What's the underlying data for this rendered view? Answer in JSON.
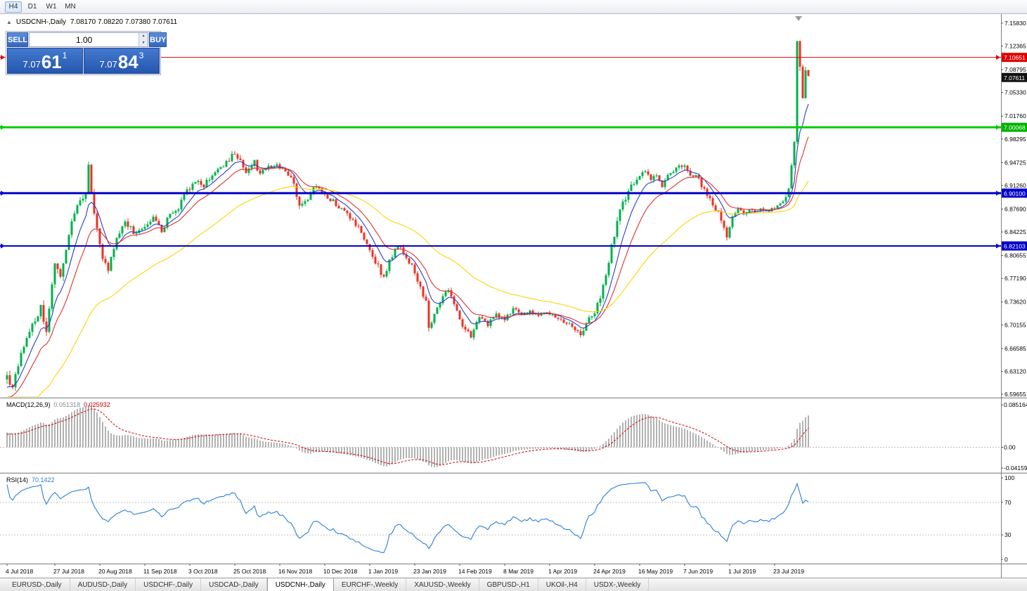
{
  "toolbar": {
    "timeframes": [
      {
        "label": "H4",
        "active": true
      },
      {
        "label": "D1",
        "active": false
      },
      {
        "label": "W1",
        "active": false
      },
      {
        "label": "MN",
        "active": false
      }
    ]
  },
  "header": {
    "symbol": "USDCNH-,Daily",
    "ohlc": "7.08170 7.08220 7.07380 7.07611"
  },
  "trade_panel": {
    "sell_label": "SELL",
    "buy_label": "BUY",
    "lot": "1.00",
    "bid": {
      "prefix": "7.07",
      "big": "61",
      "sup": "1"
    },
    "ask": {
      "prefix": "7.07",
      "big": "84",
      "sup": "3"
    }
  },
  "indicators": {
    "macd": {
      "name": "MACD(12,26,9)",
      "value": "0.051318",
      "signal": "0.025932"
    },
    "rsi": {
      "name": "RSI(14)",
      "value": "70.1422"
    }
  },
  "tabs": [
    {
      "label": "EURUSD-,Daily",
      "active": false
    },
    {
      "label": "AUDUSD-,Daily",
      "active": false
    },
    {
      "label": "USDCHF-,Daily",
      "active": false
    },
    {
      "label": "USDCAD-,Daily",
      "active": false
    },
    {
      "label": "USDCNH-,Daily",
      "active": true
    },
    {
      "label": "EURCHF-,Weekly",
      "active": false
    },
    {
      "label": "XAUUSD-,Weekly",
      "active": false
    },
    {
      "label": "GBPUSD-,H1",
      "active": false
    },
    {
      "label": "UKOil-,H4",
      "active": false
    },
    {
      "label": "USDX-,Weekly",
      "active": false
    }
  ],
  "chart_data": {
    "type": "candlestick",
    "symbol": "USDCNH",
    "timeframe": "Daily",
    "ohlc_display": {
      "open": "7.08170",
      "high": "7.08220",
      "low": "7.07380",
      "close": "7.07611"
    },
    "price_range": {
      "top": 7.17213,
      "bottom": 6.5923
    },
    "price_ticks": [
      "7.15830",
      "7.12365",
      "7.08795",
      "7.05330",
      "7.01760",
      "6.98295",
      "6.94725",
      "6.91260",
      "6.87690",
      "6.84225",
      "6.80655",
      "6.77190",
      "6.73620",
      "6.70155",
      "6.66585",
      "6.63120",
      "6.59655"
    ],
    "current_price": {
      "value": 7.07611,
      "label": "7.07611",
      "bg": "#111111"
    },
    "hlines": [
      {
        "value": 7.10651,
        "label": "7.10651",
        "color": "#e00000",
        "label_bg": "#dd0000",
        "width": 1
      },
      {
        "value": 7.00068,
        "label": "7.00068",
        "color": "#00cc00",
        "label_bg": "#00b300",
        "width": 3
      },
      {
        "value": 6.901,
        "label": "6.90100",
        "color": "#0000c8",
        "label_bg": "#0000c8",
        "width": 3
      },
      {
        "value": 6.82103,
        "label": "6.82103",
        "color": "#0000c8",
        "label_bg": "#0000c8",
        "width": 2
      }
    ],
    "colors": {
      "up": "#00b14c",
      "down": "#ea3224",
      "ma": [
        {
          "period": 8,
          "color": "#2b3fc4"
        },
        {
          "period": 16,
          "color": "#e03030"
        },
        {
          "period": 50,
          "color": "#ffd300"
        }
      ]
    },
    "candles": {
      "seed": 123456789,
      "anchors": [
        [
          -30,
          6.5,
          0.012
        ],
        [
          -20,
          6.548,
          0.012
        ],
        [
          -10,
          6.568,
          0.012
        ],
        [
          0,
          6.63,
          0.014
        ],
        [
          2,
          6.602,
          0.015
        ],
        [
          5,
          6.66,
          0.014
        ],
        [
          9,
          6.705,
          0.013
        ],
        [
          12,
          6.726,
          0.013
        ],
        [
          14,
          6.695,
          0.013
        ],
        [
          17,
          6.79,
          0.013
        ],
        [
          19,
          6.778,
          0.012
        ],
        [
          23,
          6.853,
          0.012
        ],
        [
          25,
          6.885,
          0.011
        ],
        [
          28,
          6.898,
          0.012
        ],
        [
          29,
          6.943,
          0.013
        ],
        [
          31,
          6.87,
          0.012
        ],
        [
          34,
          6.806,
          0.011
        ],
        [
          36,
          6.788,
          0.011
        ],
        [
          39,
          6.835,
          0.01
        ],
        [
          42,
          6.858,
          0.01
        ],
        [
          45,
          6.842,
          0.01
        ],
        [
          49,
          6.848,
          0.009
        ],
        [
          52,
          6.862,
          0.009
        ],
        [
          55,
          6.845,
          0.009
        ],
        [
          58,
          6.868,
          0.009
        ],
        [
          61,
          6.878,
          0.009
        ],
        [
          64,
          6.905,
          0.009
        ],
        [
          67,
          6.92,
          0.009
        ],
        [
          70,
          6.912,
          0.009
        ],
        [
          73,
          6.93,
          0.009
        ],
        [
          76,
          6.938,
          0.009
        ],
        [
          79,
          6.952,
          0.01
        ],
        [
          81,
          6.962,
          0.01
        ],
        [
          83,
          6.95,
          0.01
        ],
        [
          85,
          6.935,
          0.009
        ],
        [
          88,
          6.948,
          0.009
        ],
        [
          90,
          6.93,
          0.009
        ],
        [
          93,
          6.94,
          0.008
        ],
        [
          96,
          6.942,
          0.008
        ],
        [
          99,
          6.933,
          0.008
        ],
        [
          102,
          6.916,
          0.008
        ],
        [
          104,
          6.88,
          0.01
        ],
        [
          107,
          6.893,
          0.009
        ],
        [
          110,
          6.914,
          0.008
        ],
        [
          113,
          6.898,
          0.008
        ],
        [
          116,
          6.888,
          0.008
        ],
        [
          119,
          6.877,
          0.008
        ],
        [
          122,
          6.862,
          0.008
        ],
        [
          125,
          6.848,
          0.008
        ],
        [
          128,
          6.827,
          0.008
        ],
        [
          131,
          6.798,
          0.009
        ],
        [
          134,
          6.772,
          0.009
        ],
        [
          136,
          6.798,
          0.008
        ],
        [
          139,
          6.822,
          0.008
        ],
        [
          141,
          6.812,
          0.008
        ],
        [
          144,
          6.79,
          0.008
        ],
        [
          147,
          6.76,
          0.009
        ],
        [
          149,
          6.737,
          0.011
        ],
        [
          150,
          6.695,
          0.012
        ],
        [
          152,
          6.722,
          0.009
        ],
        [
          155,
          6.742,
          0.008
        ],
        [
          157,
          6.757,
          0.008
        ],
        [
          160,
          6.72,
          0.009
        ],
        [
          163,
          6.694,
          0.009
        ],
        [
          165,
          6.684,
          0.008
        ],
        [
          168,
          6.712,
          0.008
        ],
        [
          171,
          6.702,
          0.007
        ],
        [
          174,
          6.718,
          0.007
        ],
        [
          177,
          6.71,
          0.007
        ],
        [
          180,
          6.725,
          0.007
        ],
        [
          183,
          6.716,
          0.006
        ],
        [
          186,
          6.722,
          0.006
        ],
        [
          189,
          6.716,
          0.006
        ],
        [
          192,
          6.722,
          0.006
        ],
        [
          195,
          6.712,
          0.006
        ],
        [
          198,
          6.707,
          0.006
        ],
        [
          201,
          6.699,
          0.006
        ],
        [
          204,
          6.688,
          0.007
        ],
        [
          207,
          6.71,
          0.007
        ],
        [
          209,
          6.722,
          0.008
        ],
        [
          211,
          6.74,
          0.01
        ],
        [
          213,
          6.78,
          0.012
        ],
        [
          215,
          6.818,
          0.012
        ],
        [
          217,
          6.86,
          0.012
        ],
        [
          219,
          6.888,
          0.011
        ],
        [
          221,
          6.902,
          0.01
        ],
        [
          223,
          6.918,
          0.009
        ],
        [
          225,
          6.928,
          0.009
        ],
        [
          227,
          6.937,
          0.008
        ],
        [
          229,
          6.922,
          0.008
        ],
        [
          231,
          6.93,
          0.008
        ],
        [
          233,
          6.912,
          0.008
        ],
        [
          235,
          6.927,
          0.008
        ],
        [
          237,
          6.932,
          0.008
        ],
        [
          239,
          6.941,
          0.009
        ],
        [
          241,
          6.939,
          0.009
        ],
        [
          243,
          6.928,
          0.008
        ],
        [
          245,
          6.931,
          0.008
        ],
        [
          247,
          6.912,
          0.008
        ],
        [
          249,
          6.898,
          0.008
        ],
        [
          251,
          6.882,
          0.008
        ],
        [
          253,
          6.872,
          0.008
        ],
        [
          255,
          6.848,
          0.009
        ],
        [
          256,
          6.833,
          0.009
        ],
        [
          258,
          6.866,
          0.008
        ],
        [
          260,
          6.877,
          0.007
        ],
        [
          262,
          6.868,
          0.006
        ],
        [
          264,
          6.877,
          0.006
        ],
        [
          266,
          6.872,
          0.005
        ],
        [
          268,
          6.877,
          0.005
        ],
        [
          270,
          6.874,
          0.005
        ],
        [
          272,
          6.877,
          0.005
        ],
        [
          274,
          6.881,
          0.005
        ],
        [
          276,
          6.887,
          0.006
        ],
        [
          278,
          6.906,
          0.009
        ],
        [
          279,
          6.946,
          0.011
        ],
        [
          280,
          6.977,
          0.011
        ],
        [
          281,
          7.131,
          0.013
        ],
        [
          282,
          7.088,
          0.013
        ],
        [
          283,
          7.049,
          0.012
        ],
        [
          284,
          7.087,
          0.01
        ],
        [
          285,
          7.076,
          0.009
        ]
      ]
    },
    "date_ticks": [
      {
        "i": 0,
        "label": "4 Jul 2018"
      },
      {
        "i": 17,
        "label": "27 Jul 2018"
      },
      {
        "i": 33,
        "label": "20 Aug 2018"
      },
      {
        "i": 49,
        "label": "11 Sep 2018"
      },
      {
        "i": 65,
        "label": "3 Oct 2018"
      },
      {
        "i": 81,
        "label": "25 Oct 2018"
      },
      {
        "i": 97,
        "label": "16 Nov 2018"
      },
      {
        "i": 113,
        "label": "10 Dec 2018"
      },
      {
        "i": 129,
        "label": "1 Jan 2019"
      },
      {
        "i": 145,
        "label": "23 Jan 2019"
      },
      {
        "i": 161,
        "label": "14 Feb 2019"
      },
      {
        "i": 177,
        "label": "8 Mar 2019"
      },
      {
        "i": 193,
        "label": "1 Apr 2019"
      },
      {
        "i": 209,
        "label": "24 Apr 2019"
      },
      {
        "i": 225,
        "label": "16 May 2019"
      },
      {
        "i": 241,
        "label": "7 Jun 2019"
      },
      {
        "i": 257,
        "label": "1 Jul 2019"
      },
      {
        "i": 273,
        "label": "23 Jul 2019"
      }
    ],
    "macd": {
      "range": {
        "top": 0.098,
        "bottom": -0.05
      },
      "axis": [
        {
          "v": 0.085164,
          "label": "0.085164"
        },
        {
          "v": 0,
          "label": "0.00"
        },
        {
          "v": -0.04159,
          "label": "-0.04159"
        }
      ],
      "hist_color": "#b2b2b2",
      "signal_color": "#d40000"
    },
    "rsi": {
      "period": 14,
      "color": "#2a7fd4",
      "levels": [
        70,
        30
      ],
      "axis": [
        {
          "v": 100,
          "label": "100"
        },
        {
          "v": 70,
          "label": "70"
        },
        {
          "v": 30,
          "label": "30"
        },
        {
          "v": 0,
          "label": "0"
        }
      ]
    }
  }
}
